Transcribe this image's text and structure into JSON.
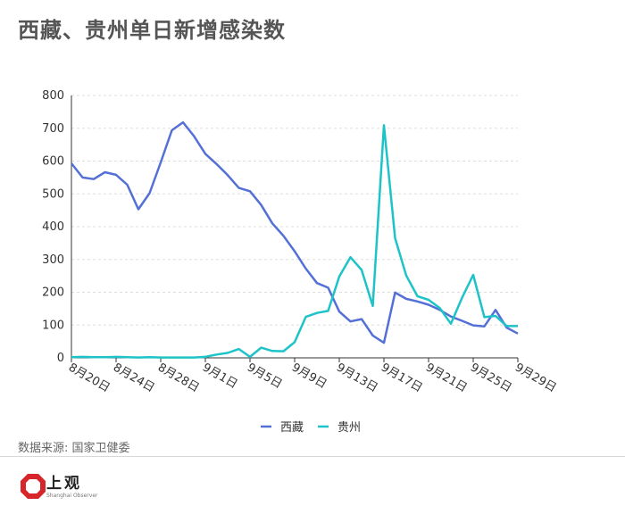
{
  "title": "西藏、贵州单日新增感染数",
  "source": "数据来源: 国家卫健委",
  "logo": {
    "name": "上观",
    "sub": "Shanghai Observer"
  },
  "colors": {
    "xizang": "#5470d6",
    "guizhou": "#1ec3c8",
    "axis": "#333333",
    "grid": "#dddddd"
  },
  "chart_data": {
    "type": "line",
    "x": [
      "8月20日",
      "8月21日",
      "8月22日",
      "8月23日",
      "8月24日",
      "8月25日",
      "8月26日",
      "8月27日",
      "8月28日",
      "8月29日",
      "8月30日",
      "8月31日",
      "9月1日",
      "9月2日",
      "9月3日",
      "9月4日",
      "9月5日",
      "9月6日",
      "9月7日",
      "9月8日",
      "9月9日",
      "9月10日",
      "9月11日",
      "9月12日",
      "9月13日",
      "9月14日",
      "9月15日",
      "9月16日",
      "9月17日",
      "9月18日",
      "9月19日",
      "9月20日",
      "9月21日",
      "9月22日",
      "9月23日",
      "9月24日",
      "9月25日",
      "9月26日",
      "9月27日",
      "9月28日",
      "9月29日"
    ],
    "tick_labels": [
      "8月20日",
      "8月24日",
      "8月28日",
      "9月1日",
      "9月5日",
      "9月9日",
      "9月13日",
      "9月17日",
      "9月21日",
      "9月25日",
      "9月29日"
    ],
    "tick_every": 4,
    "ylim": [
      0,
      800
    ],
    "yticks": [
      0,
      100,
      200,
      300,
      400,
      500,
      600,
      700,
      800
    ],
    "grid": true,
    "legend_position": "bottom-center",
    "series": [
      {
        "name": "西藏",
        "color": "#5470d6",
        "values": [
          593,
          550,
          545,
          566,
          558,
          528,
          453,
          502,
          596,
          694,
          718,
          675,
          622,
          591,
          557,
          518,
          508,
          466,
          410,
          372,
          325,
          272,
          228,
          214,
          141,
          111,
          118,
          68,
          46,
          199,
          180,
          172,
          162,
          146,
          126,
          113,
          99,
          96,
          146,
          92,
          74
        ]
      },
      {
        "name": "贵州",
        "color": "#1ec3c8",
        "values": [
          2,
          3,
          2,
          2,
          3,
          2,
          1,
          2,
          1,
          1,
          1,
          1,
          3,
          10,
          15,
          27,
          3,
          31,
          21,
          20,
          48,
          125,
          137,
          143,
          248,
          307,
          268,
          158,
          709,
          365,
          251,
          188,
          177,
          152,
          104,
          183,
          253,
          124,
          128,
          97,
          97
        ]
      }
    ]
  }
}
